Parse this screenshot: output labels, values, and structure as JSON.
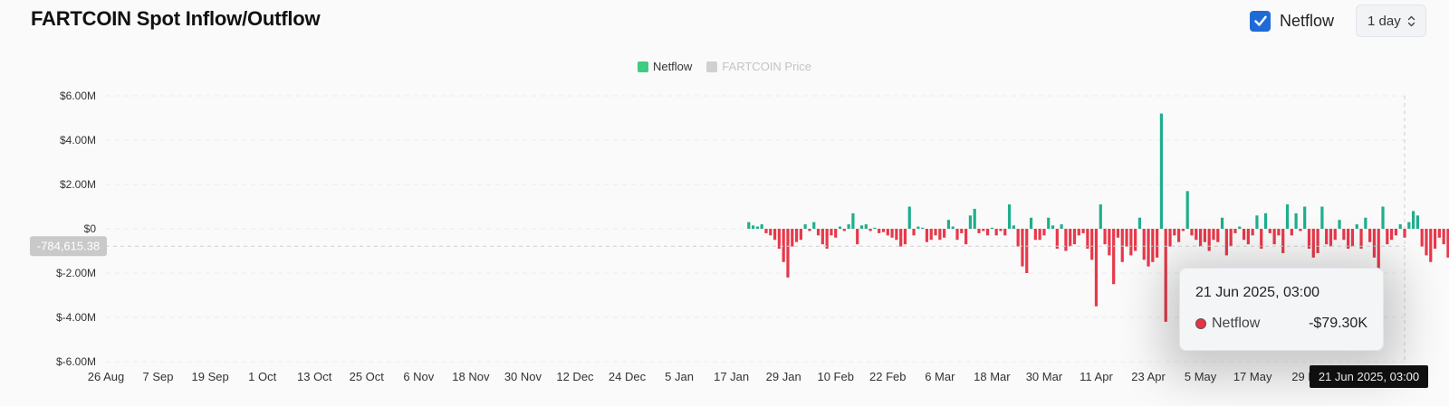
{
  "header": {
    "title": "FARTCOIN Spot Inflow/Outflow",
    "netflow_toggle": {
      "label": "Netflow",
      "checked": true
    },
    "interval": {
      "value": "1 day"
    }
  },
  "colors": {
    "positive": "#1fae8c",
    "negative": "#e8384a",
    "legend_netflow": "#3ecb82",
    "legend_price": "#d0d0d0"
  },
  "chart_data": {
    "type": "bar",
    "title": "",
    "xlabel": "",
    "ylabel": "",
    "ylim": [
      -6000000,
      6000000
    ],
    "y_ticks": [
      "$6.00M",
      "$4.00M",
      "$2.00M",
      "$0",
      "$-2.00M",
      "$-4.00M",
      "$-6.00M"
    ],
    "x_tick_labels": [
      "26 Aug",
      "7 Sep",
      "19 Sep",
      "1 Oct",
      "13 Oct",
      "25 Oct",
      "6 Nov",
      "18 Nov",
      "30 Nov",
      "12 Dec",
      "24 Dec",
      "5 Jan",
      "17 Jan",
      "29 Jan",
      "10 Feb",
      "22 Feb",
      "6 Mar",
      "18 Mar",
      "30 Mar",
      "11 Apr",
      "23 Apr",
      "5 May",
      "17 May",
      "29 M"
    ],
    "x_range": [
      "2024-08-26",
      "2025-06-21"
    ],
    "legend": {
      "placement": "top-center",
      "entries": [
        "Netflow",
        "FARTCOIN Price"
      ]
    },
    "grid": true,
    "crosshair": {
      "x_label": "21 Jun 2025, 03:00",
      "y_label": "-784,615.38"
    },
    "series": [
      {
        "name": "Netflow",
        "start_date": "2025-01-21",
        "values": [
          300000,
          150000,
          100000,
          200000,
          -200000,
          -300000,
          -500000,
          -900000,
          -1500000,
          -2200000,
          -800000,
          -600000,
          -500000,
          200000,
          -100000,
          300000,
          -300000,
          -700000,
          -900000,
          -300000,
          -400000,
          100000,
          -100000,
          200000,
          700000,
          -700000,
          150000,
          200000,
          -100000,
          50000,
          -200000,
          -150000,
          -300000,
          -400000,
          -500000,
          -800000,
          -700000,
          1000000,
          -300000,
          100000,
          50000,
          -600000,
          -500000,
          -300000,
          -500000,
          -400000,
          400000,
          100000,
          -500000,
          -200000,
          -700000,
          600000,
          900000,
          -200000,
          -100000,
          -300000,
          50000,
          -300000,
          -100000,
          -300000,
          1100000,
          150000,
          -800000,
          -1700000,
          -2000000,
          500000,
          -500000,
          -500000,
          -300000,
          500000,
          150000,
          -900000,
          200000,
          -1000000,
          -800000,
          -700000,
          -300000,
          -200000,
          -900000,
          -1400000,
          -3500000,
          1100000,
          -700000,
          -1200000,
          -2500000,
          -400000,
          -1500000,
          -800000,
          -1200000,
          -1000000,
          500000,
          -1400000,
          -1700000,
          -1500000,
          -1300000,
          5200000,
          -4200000,
          -800000,
          -300000,
          -600000,
          -100000,
          1700000,
          -300000,
          -500000,
          -800000,
          -600000,
          -1000000,
          -500000,
          -600000,
          500000,
          -1200000,
          -800000,
          -200000,
          100000,
          -500000,
          -700000,
          -300000,
          600000,
          -900000,
          700000,
          -200000,
          -700000,
          -300000,
          -1100000,
          1100000,
          -300000,
          700000,
          -100000,
          1000000,
          -900000,
          -1300000,
          -1100000,
          1000000,
          -700000,
          -800000,
          -500000,
          400000,
          -500000,
          -900000,
          -800000,
          200000,
          -900000,
          500000,
          -600000,
          -1300000,
          -1800000,
          1000000,
          -700000,
          -500000,
          -300000,
          200000,
          -400000,
          300000,
          800000,
          600000,
          -800000,
          -1200000,
          -1500000,
          -900000,
          -400000,
          -700000,
          -1300000,
          -500000,
          -600000,
          -300000,
          -700000,
          -700000,
          -79300
        ]
      }
    ]
  },
  "tooltip": {
    "date": "21 Jun 2025, 03:00",
    "series": "Netflow",
    "value": "-$79.30K"
  }
}
